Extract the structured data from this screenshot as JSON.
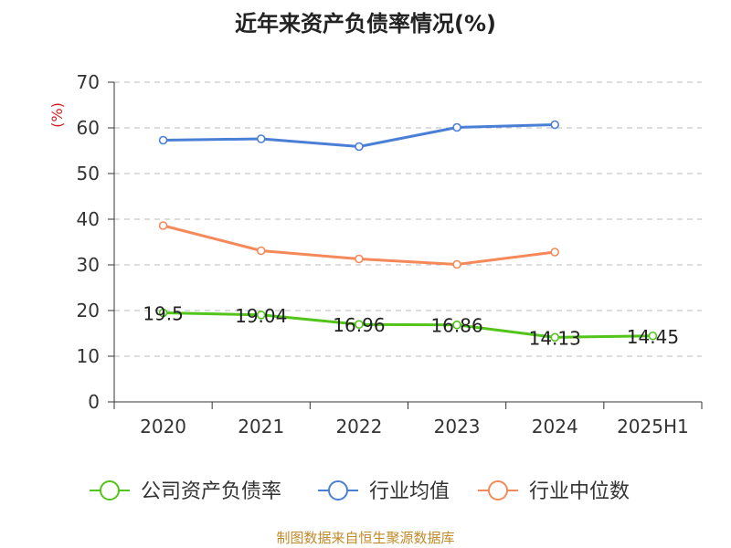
{
  "title": "近年来资产负债率情况(%)",
  "source": "制图数据来自恒生聚源数据库",
  "chart_data": {
    "type": "line",
    "title": "近年来资产负债率情况(%)",
    "ylabel": "(%)",
    "xlabel": "",
    "categories": [
      "2020",
      "2021",
      "2022",
      "2023",
      "2024",
      "2025H1"
    ],
    "ylim": [
      0,
      70
    ],
    "yticks": [
      0,
      10,
      20,
      30,
      40,
      50,
      60,
      70
    ],
    "grid": "horizontal dashed",
    "legend_position": "bottom",
    "series": [
      {
        "name": "公司资产负债率",
        "color": "#52c41a",
        "values": [
          19.5,
          19.04,
          16.96,
          16.86,
          14.13,
          14.45
        ],
        "labels": [
          "19.5",
          "19.04",
          "16.96",
          "16.86",
          "14.13",
          "14.45"
        ]
      },
      {
        "name": "行业均值",
        "color": "#4a7fd6",
        "values": [
          57.3,
          57.6,
          55.9,
          60.1,
          60.7,
          null
        ]
      },
      {
        "name": "行业中位数",
        "color": "#f5895a",
        "values": [
          38.6,
          33.1,
          31.3,
          30.1,
          32.8,
          null
        ]
      }
    ]
  }
}
